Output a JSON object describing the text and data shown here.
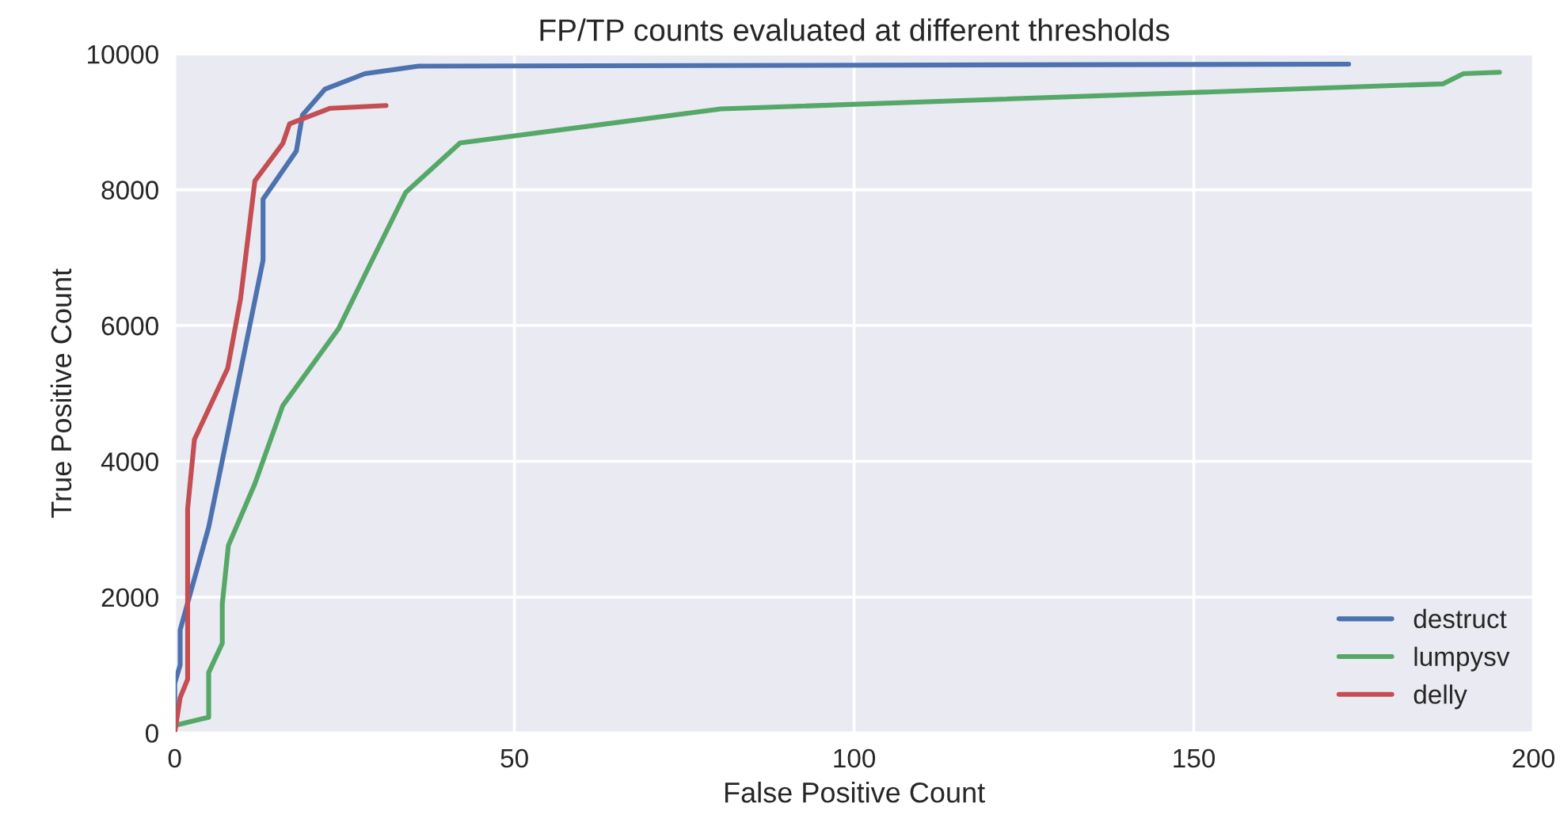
{
  "chart_data": {
    "type": "line",
    "title": "FP/TP counts evaluated at different thresholds",
    "xlabel": "False Positive Count",
    "ylabel": "True Positive Count",
    "xlim": [
      0,
      200
    ],
    "ylim": [
      0,
      10000
    ],
    "xticks": [
      0,
      50,
      100,
      150,
      200
    ],
    "yticks": [
      0,
      2000,
      4000,
      6000,
      8000,
      10000
    ],
    "grid": true,
    "legend": "bottom right",
    "series": [
      {
        "name": "destruct",
        "color": "#4c72b0",
        "x": [
          0,
          0,
          0.8,
          0.8,
          5,
          9.3,
          13,
          13,
          17.9,
          18.8,
          22.1,
          28,
          35.9,
          172.8
        ],
        "values": [
          70,
          730,
          1000,
          1515,
          3030,
          5140,
          6960,
          7860,
          8570,
          9100,
          9480,
          9710,
          9820,
          9850
        ]
      },
      {
        "name": "lumpysv",
        "color": "#55a868",
        "x": [
          0,
          5,
          5,
          7,
          7,
          7.9,
          11.8,
          15.9,
          24.1,
          28.7,
          34,
          42,
          80.4,
          186.7,
          189.7,
          195
        ],
        "values": [
          110,
          230,
          890,
          1320,
          1900,
          2760,
          3670,
          4820,
          5950,
          6890,
          7960,
          8690,
          9190,
          9560,
          9710,
          9730
        ]
      },
      {
        "name": "delly",
        "color": "#c44e52",
        "x": [
          0,
          0.8,
          1.9,
          1.9,
          2.9,
          7.8,
          9.7,
          11.8,
          15.9,
          16.9,
          22.9,
          31.1
        ],
        "values": [
          0,
          520,
          790,
          3300,
          4320,
          5370,
          6400,
          8130,
          8680,
          8970,
          9200,
          9240
        ]
      }
    ]
  }
}
